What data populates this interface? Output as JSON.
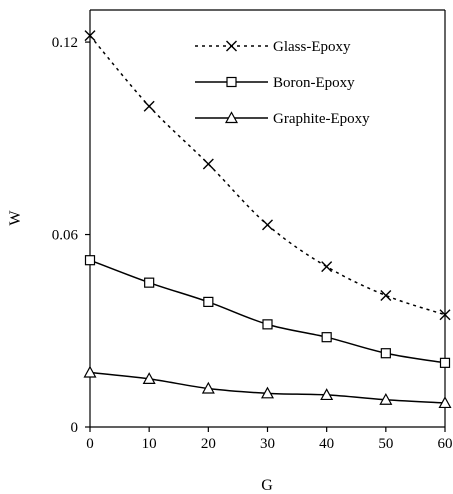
{
  "chart_data": {
    "type": "line",
    "xlabel": "G",
    "ylabel": "W",
    "x": [
      0,
      10,
      20,
      30,
      40,
      50,
      60
    ],
    "xlim": [
      0,
      60
    ],
    "ylim": [
      0,
      0.13
    ],
    "x_ticks": [
      "0",
      "10",
      "20",
      "30",
      "40",
      "50",
      "60"
    ],
    "y_ticks": [
      {
        "value": 0,
        "label": "0"
      },
      {
        "value": 0.06,
        "label": "0.06"
      },
      {
        "value": 0.12,
        "label": "0.12"
      }
    ],
    "grid": false,
    "legend_position": "top-right",
    "series": [
      {
        "name": "Glass-Epoxy",
        "line_style": "dotted",
        "marker": "x",
        "values": [
          0.122,
          0.1,
          0.082,
          0.063,
          0.05,
          0.041,
          0.035
        ]
      },
      {
        "name": "Boron-Epoxy",
        "line_style": "solid",
        "marker": "square",
        "values": [
          0.052,
          0.045,
          0.039,
          0.032,
          0.028,
          0.023,
          0.02
        ]
      },
      {
        "name": "Graphite-Epoxy",
        "line_style": "solid",
        "marker": "triangle",
        "values": [
          0.017,
          0.015,
          0.012,
          0.0105,
          0.01,
          0.0085,
          0.0075
        ]
      }
    ]
  }
}
